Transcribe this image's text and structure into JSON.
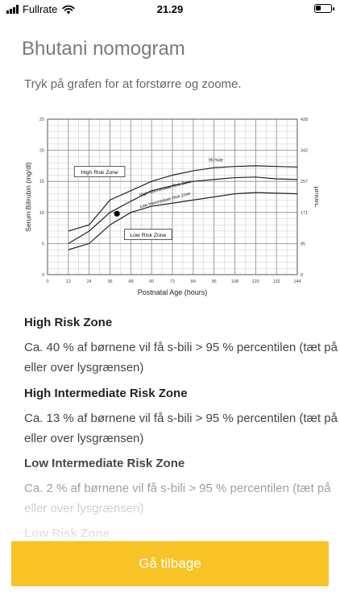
{
  "status_bar": {
    "carrier": "Fullrate",
    "time": "21.29"
  },
  "page": {
    "title": "Bhutani nomogram",
    "subtitle": "Tryk på grafen for at forstørre og zoome."
  },
  "chart_data": {
    "type": "line",
    "title": "",
    "xlabel": "Postnatal Age (hours)",
    "ylabel": "Serum Bilirubin (mg/dl)",
    "y2label": "µmol/L",
    "xlim": [
      0,
      144
    ],
    "ylim": [
      0,
      25
    ],
    "grid": true,
    "x_ticks": [
      "0",
      "12",
      "24",
      "36",
      "48",
      "60",
      "72",
      "84",
      "96",
      "108",
      "120",
      "132",
      "144"
    ],
    "y_ticks": [
      "0",
      "5",
      "10",
      "15",
      "20",
      "25"
    ],
    "y2_ticks": [
      "0",
      "85",
      "171",
      "257",
      "342",
      "428"
    ],
    "x": [
      12,
      24,
      36,
      48,
      60,
      72,
      84,
      96,
      108,
      120,
      132,
      144
    ],
    "series": [
      {
        "name": "95 %ile",
        "values": [
          7.0,
          8.0,
          12.0,
          13.5,
          15.0,
          16.0,
          16.7,
          17.2,
          17.4,
          17.5,
          17.4,
          17.3
        ]
      },
      {
        "name": "",
        "values": [
          5.0,
          7.0,
          10.0,
          11.8,
          13.5,
          14.3,
          15.0,
          15.3,
          15.6,
          15.7,
          15.4,
          15.3
        ]
      },
      {
        "name": "",
        "values": [
          4.0,
          5.0,
          8.0,
          10.0,
          11.0,
          11.5,
          12.0,
          12.5,
          13.0,
          13.2,
          13.1,
          13.0
        ]
      }
    ],
    "point": {
      "x": 40,
      "y": 9.8
    },
    "annotations": [
      "High Risk Zone",
      "High Intermediate Risk Zone",
      "Low Intermediate Risk Zone",
      "Low Risk Zone",
      "95 %ile"
    ],
    "line_color": "#222222"
  },
  "sections": [
    {
      "heading": "High Risk Zone",
      "text": "Ca. 40 % af børnene vil få s-bili > 95 % percentilen (tæt på eller over lysgrænsen)"
    },
    {
      "heading": "High Intermediate Risk Zone",
      "text": "Ca. 13 % af børnene vil få s-bili > 95 % percentilen (tæt på eller over lysgrænsen)"
    },
    {
      "heading": "Low Intermediate Risk Zone",
      "text": "Ca. 2 % af børnene vil få s-bili > 95 % percentilen (tæt på eller over lysgrænsen)"
    },
    {
      "heading": "Low Risk Zone",
      "text": ""
    }
  ],
  "button": {
    "label": "Gå tilbage",
    "color": "#f8c326"
  }
}
